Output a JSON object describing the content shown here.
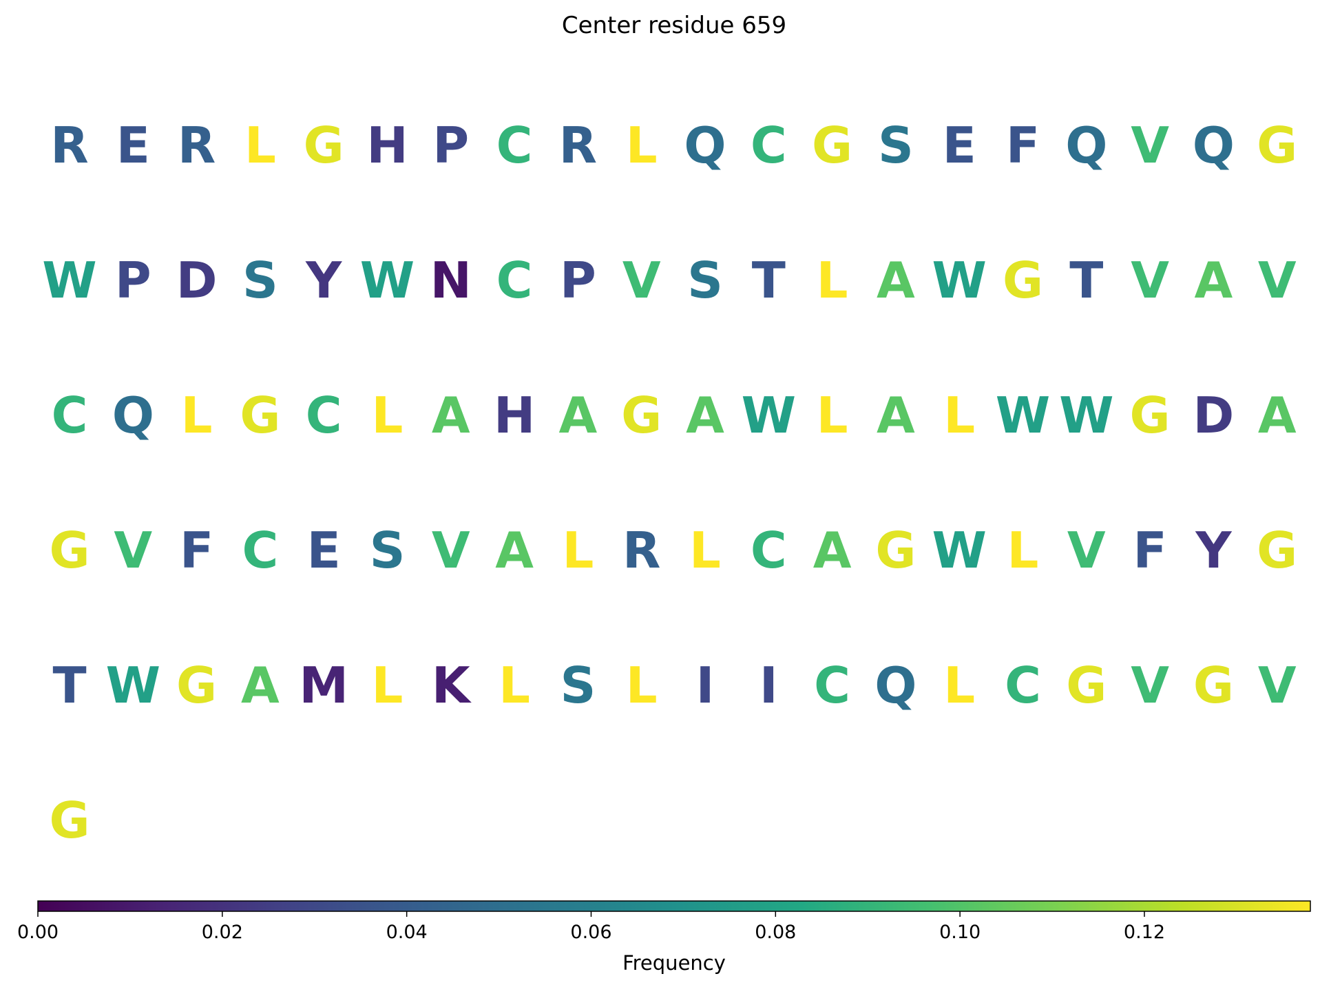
{
  "chart_data": {
    "type": "heatmap",
    "title": "Center residue 659",
    "colormap": "viridis",
    "colorbar": {
      "label": "Frequency",
      "range": [
        0,
        0.138
      ],
      "ticks": [
        0.0,
        0.02,
        0.04,
        0.06,
        0.08,
        0.1,
        0.12
      ],
      "tick_labels": [
        "0.00",
        "0.02",
        "0.04",
        "0.06",
        "0.08",
        "0.10",
        "0.12"
      ],
      "orientation": "horizontal",
      "placement": "bottom"
    },
    "columns_per_row": 20,
    "residues": [
      {
        "aa": "R",
        "freq": 0.042
      },
      {
        "aa": "E",
        "freq": 0.036
      },
      {
        "aa": "R",
        "freq": 0.042
      },
      {
        "aa": "L",
        "freq": 0.138
      },
      {
        "aa": "G",
        "freq": 0.132
      },
      {
        "aa": "H",
        "freq": 0.024
      },
      {
        "aa": "P",
        "freq": 0.03
      },
      {
        "aa": "C",
        "freq": 0.09
      },
      {
        "aa": "R",
        "freq": 0.042
      },
      {
        "aa": "L",
        "freq": 0.138
      },
      {
        "aa": "Q",
        "freq": 0.05
      },
      {
        "aa": "C",
        "freq": 0.09
      },
      {
        "aa": "G",
        "freq": 0.132
      },
      {
        "aa": "S",
        "freq": 0.054
      },
      {
        "aa": "E",
        "freq": 0.036
      },
      {
        "aa": "F",
        "freq": 0.036
      },
      {
        "aa": "Q",
        "freq": 0.05
      },
      {
        "aa": "V",
        "freq": 0.094
      },
      {
        "aa": "Q",
        "freq": 0.05
      },
      {
        "aa": "G",
        "freq": 0.132
      },
      {
        "aa": "W",
        "freq": 0.078
      },
      {
        "aa": "P",
        "freq": 0.03
      },
      {
        "aa": "D",
        "freq": 0.024
      },
      {
        "aa": "S",
        "freq": 0.054
      },
      {
        "aa": "Y",
        "freq": 0.022
      },
      {
        "aa": "W",
        "freq": 0.078
      },
      {
        "aa": "N",
        "freq": 0.008
      },
      {
        "aa": "C",
        "freq": 0.09
      },
      {
        "aa": "P",
        "freq": 0.03
      },
      {
        "aa": "V",
        "freq": 0.094
      },
      {
        "aa": "S",
        "freq": 0.054
      },
      {
        "aa": "T",
        "freq": 0.036
      },
      {
        "aa": "L",
        "freq": 0.138
      },
      {
        "aa": "A",
        "freq": 0.102
      },
      {
        "aa": "W",
        "freq": 0.078
      },
      {
        "aa": "G",
        "freq": 0.132
      },
      {
        "aa": "T",
        "freq": 0.036
      },
      {
        "aa": "V",
        "freq": 0.094
      },
      {
        "aa": "A",
        "freq": 0.102
      },
      {
        "aa": "V",
        "freq": 0.094
      },
      {
        "aa": "C",
        "freq": 0.09
      },
      {
        "aa": "Q",
        "freq": 0.05
      },
      {
        "aa": "L",
        "freq": 0.138
      },
      {
        "aa": "G",
        "freq": 0.132
      },
      {
        "aa": "C",
        "freq": 0.09
      },
      {
        "aa": "L",
        "freq": 0.138
      },
      {
        "aa": "A",
        "freq": 0.102
      },
      {
        "aa": "H",
        "freq": 0.024
      },
      {
        "aa": "A",
        "freq": 0.102
      },
      {
        "aa": "G",
        "freq": 0.132
      },
      {
        "aa": "A",
        "freq": 0.102
      },
      {
        "aa": "W",
        "freq": 0.078
      },
      {
        "aa": "L",
        "freq": 0.138
      },
      {
        "aa": "A",
        "freq": 0.102
      },
      {
        "aa": "L",
        "freq": 0.138
      },
      {
        "aa": "W",
        "freq": 0.078
      },
      {
        "aa": "W",
        "freq": 0.078
      },
      {
        "aa": "G",
        "freq": 0.132
      },
      {
        "aa": "D",
        "freq": 0.024
      },
      {
        "aa": "A",
        "freq": 0.102
      },
      {
        "aa": "G",
        "freq": 0.132
      },
      {
        "aa": "V",
        "freq": 0.094
      },
      {
        "aa": "F",
        "freq": 0.036
      },
      {
        "aa": "C",
        "freq": 0.09
      },
      {
        "aa": "E",
        "freq": 0.036
      },
      {
        "aa": "S",
        "freq": 0.054
      },
      {
        "aa": "V",
        "freq": 0.094
      },
      {
        "aa": "A",
        "freq": 0.102
      },
      {
        "aa": "L",
        "freq": 0.138
      },
      {
        "aa": "R",
        "freq": 0.042
      },
      {
        "aa": "L",
        "freq": 0.138
      },
      {
        "aa": "C",
        "freq": 0.09
      },
      {
        "aa": "A",
        "freq": 0.102
      },
      {
        "aa": "G",
        "freq": 0.132
      },
      {
        "aa": "W",
        "freq": 0.078
      },
      {
        "aa": "L",
        "freq": 0.138
      },
      {
        "aa": "V",
        "freq": 0.094
      },
      {
        "aa": "F",
        "freq": 0.036
      },
      {
        "aa": "Y",
        "freq": 0.022
      },
      {
        "aa": "G",
        "freq": 0.132
      },
      {
        "aa": "T",
        "freq": 0.036
      },
      {
        "aa": "W",
        "freq": 0.078
      },
      {
        "aa": "G",
        "freq": 0.132
      },
      {
        "aa": "A",
        "freq": 0.102
      },
      {
        "aa": "M",
        "freq": 0.014
      },
      {
        "aa": "L",
        "freq": 0.138
      },
      {
        "aa": "K",
        "freq": 0.012
      },
      {
        "aa": "L",
        "freq": 0.138
      },
      {
        "aa": "S",
        "freq": 0.054
      },
      {
        "aa": "L",
        "freq": 0.138
      },
      {
        "aa": "I",
        "freq": 0.03
      },
      {
        "aa": "I",
        "freq": 0.03
      },
      {
        "aa": "C",
        "freq": 0.09
      },
      {
        "aa": "Q",
        "freq": 0.05
      },
      {
        "aa": "L",
        "freq": 0.138
      },
      {
        "aa": "C",
        "freq": 0.09
      },
      {
        "aa": "G",
        "freq": 0.132
      },
      {
        "aa": "V",
        "freq": 0.094
      },
      {
        "aa": "G",
        "freq": 0.132
      },
      {
        "aa": "V",
        "freq": 0.094
      },
      {
        "aa": "G",
        "freq": 0.132
      }
    ]
  }
}
